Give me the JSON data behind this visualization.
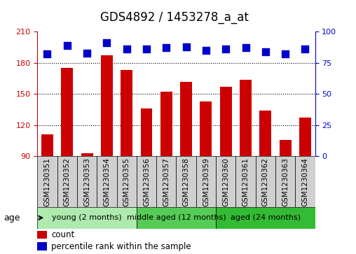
{
  "title": "GDS4892 / 1453278_a_at",
  "samples": [
    "GSM1230351",
    "GSM1230352",
    "GSM1230353",
    "GSM1230354",
    "GSM1230355",
    "GSM1230356",
    "GSM1230357",
    "GSM1230358",
    "GSM1230359",
    "GSM1230360",
    "GSM1230361",
    "GSM1230362",
    "GSM1230363",
    "GSM1230364"
  ],
  "counts": [
    111,
    175,
    93,
    187,
    173,
    136,
    152,
    162,
    143,
    157,
    164,
    134,
    106,
    127
  ],
  "percentile_ranks": [
    82,
    89,
    83,
    91,
    86,
    86,
    87,
    88,
    85,
    86,
    87,
    84,
    82,
    86
  ],
  "ylim_left": [
    90,
    210
  ],
  "ylim_right": [
    0,
    100
  ],
  "yticks_left": [
    90,
    120,
    150,
    180,
    210
  ],
  "yticks_right": [
    0,
    25,
    50,
    75,
    100
  ],
  "bar_color": "#cc0000",
  "dot_color": "#0000cc",
  "groups": [
    {
      "label": "young (2 months)",
      "start": 0,
      "end": 5,
      "color": "#aeeaae"
    },
    {
      "label": "middle aged (12 months)",
      "start": 5,
      "end": 9,
      "color": "#55cc55"
    },
    {
      "label": "aged (24 months)",
      "start": 9,
      "end": 14,
      "color": "#33bb33"
    }
  ],
  "age_label": "age",
  "legend_count": "count",
  "legend_percentile": "percentile rank within the sample",
  "background_color": "#ffffff",
  "title_fontsize": 12,
  "tick_fontsize": 8,
  "label_fontsize": 7.5,
  "bar_width": 0.6,
  "dot_size": 50,
  "dot_marker": "s",
  "label_box_color": "#d0d0d0"
}
